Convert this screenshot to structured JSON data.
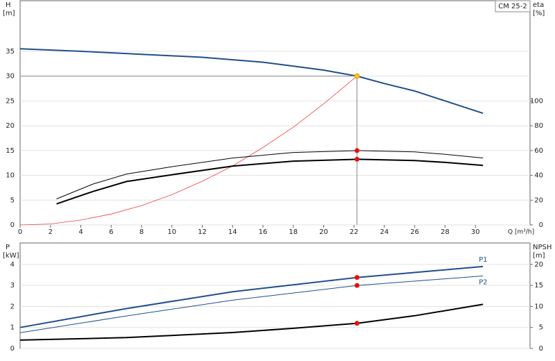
{
  "chart_data": [
    {
      "type": "line",
      "title": "CM 25-2",
      "x_label": "Q [m³/h]",
      "y_label": "H",
      "y_unit": "[m]",
      "y2_label": "eta",
      "y2_unit": "[%]",
      "xlim": [
        0,
        33.6
      ],
      "xticks": [
        0,
        2,
        4,
        6,
        8,
        10,
        12,
        14,
        16,
        18,
        20,
        22,
        24,
        26,
        28,
        30
      ],
      "ylim": [
        0,
        45.2
      ],
      "yticks": [
        0,
        5,
        10,
        15,
        20,
        25,
        30,
        35
      ],
      "y2lim": [
        0,
        181
      ],
      "y2ticks": [
        0,
        20,
        40,
        60,
        80,
        100
      ],
      "grid": true,
      "series": [
        {
          "color": "#1f4e8c",
          "line_width": 2,
          "x": [
            0,
            4,
            8,
            12,
            16,
            18,
            20,
            22.2,
            24,
            26,
            28,
            30.5
          ],
          "values": [
            35.5,
            35,
            34.4,
            33.8,
            32.8,
            32,
            31.2,
            30,
            28.5,
            27,
            25,
            22.5
          ]
        },
        {
          "color": "#f04040",
          "line_width": 0.8,
          "x": [
            0,
            2,
            4,
            6,
            8,
            10,
            12,
            14,
            16,
            18,
            20,
            22.2
          ],
          "values": [
            0,
            0.2,
            1,
            2.2,
            3.9,
            6.1,
            8.8,
            11.9,
            15.6,
            19.7,
            24.4,
            30
          ]
        },
        {
          "color": "#000000",
          "line_width": 1,
          "axis": "y2",
          "x": [
            2.4,
            4.8,
            7,
            10,
            14,
            18,
            22.2,
            26,
            28,
            30.5
          ],
          "values": [
            21,
            33,
            41,
            47,
            54,
            58.5,
            60,
            59,
            57,
            54
          ]
        },
        {
          "color": "#000000",
          "line_width": 2,
          "axis": "y2",
          "x": [
            2.4,
            4.8,
            7,
            10,
            14,
            18,
            22.2,
            26,
            28,
            30.5
          ],
          "values": [
            17,
            27,
            35,
            40.5,
            47.5,
            51.5,
            53,
            52,
            50.5,
            48
          ]
        },
        {
          "color": "#f5c518",
          "marker": true,
          "guide": true,
          "x": [
            22.2
          ],
          "values": [
            30
          ]
        },
        {
          "color": "#e81010",
          "marker": true,
          "axis": "y2",
          "x": [
            22.2
          ],
          "values": [
            60
          ]
        },
        {
          "color": "#e81010",
          "marker": true,
          "axis": "y2",
          "x": [
            22.2
          ],
          "values": [
            53
          ]
        }
      ]
    },
    {
      "type": "line",
      "y_label": "P",
      "y_unit": "[kW]",
      "y2_label": "NPSH",
      "y2_unit": "[m]",
      "xlim": [
        0,
        33.6
      ],
      "ylim": [
        0,
        5.02
      ],
      "yticks": [
        0,
        1,
        2,
        3,
        4
      ],
      "y2lim": [
        0,
        25.1
      ],
      "y2ticks": [
        0,
        5,
        10,
        15,
        20
      ],
      "grid": true,
      "series": [
        {
          "name": "P1",
          "color": "#1f4e8c",
          "line_width": 2,
          "x": [
            0,
            7,
            14,
            22.2,
            30.5
          ],
          "values": [
            1.0,
            1.9,
            2.7,
            3.38,
            3.9
          ]
        },
        {
          "name": "P2",
          "color": "#1f4e8c",
          "line_width": 1,
          "x": [
            0,
            7,
            14,
            22.2,
            30.5
          ],
          "values": [
            0.75,
            1.55,
            2.3,
            3.0,
            3.45
          ]
        },
        {
          "color": "#000000",
          "line_width": 2,
          "axis": "y2",
          "x": [
            0,
            7,
            14,
            18,
            22.2,
            26,
            30.5
          ],
          "values": [
            2,
            2.6,
            3.8,
            4.8,
            6.0,
            7.8,
            10.5
          ]
        },
        {
          "color": "#e81010",
          "marker": true,
          "x": [
            22.2
          ],
          "values": [
            3.38
          ]
        },
        {
          "color": "#e81010",
          "marker": true,
          "x": [
            22.2
          ],
          "values": [
            3.0
          ]
        },
        {
          "color": "#e81010",
          "marker": true,
          "axis": "y2",
          "x": [
            22.2
          ],
          "values": [
            6.0
          ]
        }
      ]
    }
  ]
}
